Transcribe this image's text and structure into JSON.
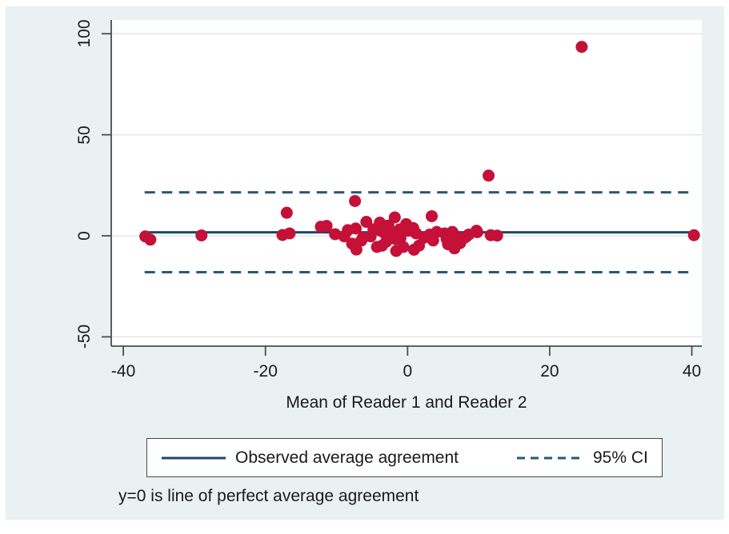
{
  "chart_data": {
    "type": "scatter",
    "title": "",
    "xlabel": "Mean of Reader 1 and Reader 2",
    "ylabel": "",
    "xlim": [
      -41.7,
      41.4
    ],
    "ylim": [
      -54.6,
      106.8
    ],
    "x_ticks": [
      -40,
      -20,
      0,
      20,
      40
    ],
    "y_ticks": [
      -50,
      0,
      50,
      100
    ],
    "grid": true,
    "mean_line": 1.7,
    "ci_upper": 21.5,
    "ci_lower": -18.0,
    "line_span_x": [
      -37.0,
      40.3
    ],
    "legend": [
      {
        "label": "Observed average agreement",
        "style": "solid"
      },
      {
        "label": "95% CI",
        "style": "dashed"
      }
    ],
    "note": "y=0 is line of perfect average agreement",
    "colors": {
      "background": "#e9f1f2",
      "plot_bg": "#ffffff",
      "point": "#c51038",
      "line": "#1a476f",
      "dashed": "#26587a",
      "axis": "#4d4d4d",
      "grid": "#e0e8ea",
      "text": "#1a1a1a"
    },
    "points": [
      [
        24.5,
        93.5
      ],
      [
        11.4,
        29.8
      ],
      [
        -7.4,
        17.2
      ],
      [
        -17.0,
        11.4
      ],
      [
        3.4,
        9.7
      ],
      [
        -1.8,
        9.1
      ],
      [
        -36.9,
        -0.3
      ],
      [
        -36.2,
        -1.9
      ],
      [
        -29.0,
        0.2
      ],
      [
        40.3,
        0.3
      ],
      [
        -17.6,
        0.4
      ],
      [
        -16.6,
        1.2
      ],
      [
        -12.2,
        4.5
      ],
      [
        -11.4,
        4.9
      ],
      [
        -10.2,
        0.8
      ],
      [
        -8.9,
        -0.3
      ],
      [
        -8.4,
        2.8
      ],
      [
        -7.8,
        -3.9
      ],
      [
        -7.3,
        3.6
      ],
      [
        -7.2,
        -6.8
      ],
      [
        -6.5,
        -2.3
      ],
      [
        -6.3,
        -1.0
      ],
      [
        -5.8,
        6.9
      ],
      [
        -5.2,
        -0.3
      ],
      [
        -4.8,
        3.2
      ],
      [
        -4.3,
        -5.5
      ],
      [
        -3.9,
        6.5
      ],
      [
        -3.8,
        2.5
      ],
      [
        -3.6,
        -4.9
      ],
      [
        -3.2,
        1.2
      ],
      [
        -3.0,
        -2.9
      ],
      [
        -2.7,
        5.1
      ],
      [
        -2.3,
        1.9
      ],
      [
        -1.7,
        -1.6
      ],
      [
        -1.6,
        -7.5
      ],
      [
        -1.1,
        3.2
      ],
      [
        -1.0,
        -1.0
      ],
      [
        -0.6,
        -5.5
      ],
      [
        -0.2,
        5.8
      ],
      [
        0.1,
        2.5
      ],
      [
        0.8,
        3.8
      ],
      [
        0.9,
        -6.9
      ],
      [
        1.2,
        1.2
      ],
      [
        1.6,
        -4.9
      ],
      [
        2.3,
        -1.0
      ],
      [
        3.1,
        0.6
      ],
      [
        3.6,
        -2.3
      ],
      [
        4.1,
        1.9
      ],
      [
        5.2,
        1.2
      ],
      [
        5.5,
        -1.6
      ],
      [
        5.7,
        -4.2
      ],
      [
        6.1,
        -2.3
      ],
      [
        6.3,
        1.9
      ],
      [
        6.6,
        -6.2
      ],
      [
        6.9,
        -0.3
      ],
      [
        7.4,
        -3.6
      ],
      [
        8.0,
        -1.0
      ],
      [
        8.3,
        -0.3
      ],
      [
        8.6,
        0.6
      ],
      [
        9.7,
        2.5
      ],
      [
        9.8,
        1.8
      ],
      [
        11.7,
        0.3
      ],
      [
        12.6,
        0.1
      ]
    ]
  }
}
